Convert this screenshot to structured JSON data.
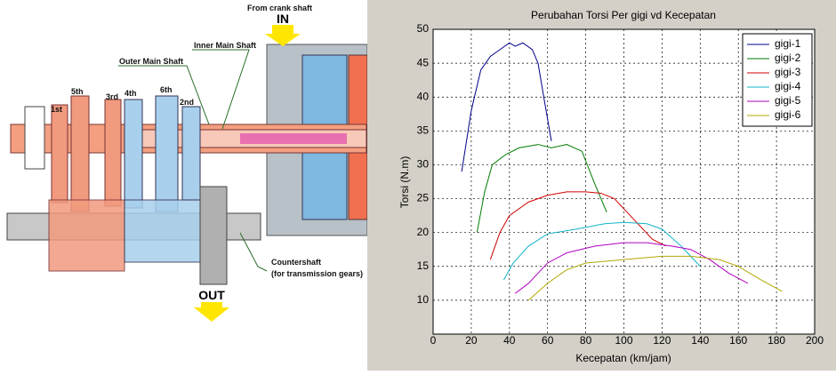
{
  "diagram": {
    "labels": {
      "crank": "From crank shaft",
      "in": "IN",
      "inner": "Inner Main Shaft",
      "outer": "Outer Main Shaft",
      "g5": "5th",
      "g1": "1st",
      "g3": "3rd",
      "g4": "4th",
      "g6": "6th",
      "g2": "2nd",
      "counter": "Countershaft",
      "counter_note": "(for transmission gears)",
      "out": "OUT"
    }
  },
  "chart_data": {
    "type": "line",
    "title": "Perubahan Torsi Per gigi vd Kecepatan",
    "xlabel": "Kecepatan (km/jam)",
    "ylabel": "Torsi (N.m)",
    "xlim": [
      0,
      200
    ],
    "xticks": [
      0,
      20,
      40,
      60,
      80,
      100,
      120,
      140,
      160,
      180,
      200
    ],
    "ylim": [
      5,
      50
    ],
    "yticks": [
      10,
      15,
      20,
      25,
      30,
      35,
      40,
      45,
      50
    ],
    "grid": true,
    "legend": "upper right",
    "series": [
      {
        "name": "gigi-1",
        "color": "#00008b",
        "x": [
          15,
          20,
          25,
          30,
          35,
          40,
          43,
          47,
          52,
          55,
          58,
          62
        ],
        "values": [
          29,
          38,
          44,
          46,
          47,
          48,
          47.5,
          48,
          47,
          45,
          40,
          33.5
        ]
      },
      {
        "name": "gigi-2",
        "color": "#007a00",
        "x": [
          23,
          27,
          31,
          38,
          45,
          55,
          62,
          70,
          78,
          85,
          91
        ],
        "values": [
          20,
          26,
          30,
          31.5,
          32.5,
          33,
          32.5,
          33,
          32,
          27,
          23
        ]
      },
      {
        "name": "gigi-3",
        "color": "#d00000",
        "x": [
          30,
          35,
          40,
          50,
          60,
          70,
          80,
          88,
          95,
          105,
          115,
          122
        ],
        "values": [
          16,
          20,
          22.5,
          24.5,
          25.5,
          26,
          26,
          25.8,
          25,
          22,
          19,
          18
        ]
      },
      {
        "name": "gigi-4",
        "color": "#10b4c8",
        "x": [
          37,
          42,
          50,
          60,
          75,
          90,
          100,
          112,
          120,
          130,
          140
        ],
        "values": [
          13,
          15.5,
          18,
          19.8,
          20.5,
          21.3,
          21.5,
          21.3,
          20.5,
          18,
          15
        ]
      },
      {
        "name": "gigi-5",
        "color": "#b000c0",
        "x": [
          43,
          50,
          60,
          70,
          85,
          100,
          112,
          125,
          135,
          145,
          155,
          165
        ],
        "values": [
          11,
          12.5,
          15.5,
          17,
          18,
          18.5,
          18.5,
          18,
          17.5,
          16,
          14,
          12.5
        ]
      },
      {
        "name": "gigi-6",
        "color": "#b0a800",
        "x": [
          50,
          60,
          70,
          80,
          100,
          120,
          135,
          150,
          160,
          172,
          183
        ],
        "values": [
          10,
          12.5,
          14.5,
          15.5,
          16,
          16.5,
          16.5,
          16,
          15,
          13,
          11.3
        ]
      }
    ]
  }
}
